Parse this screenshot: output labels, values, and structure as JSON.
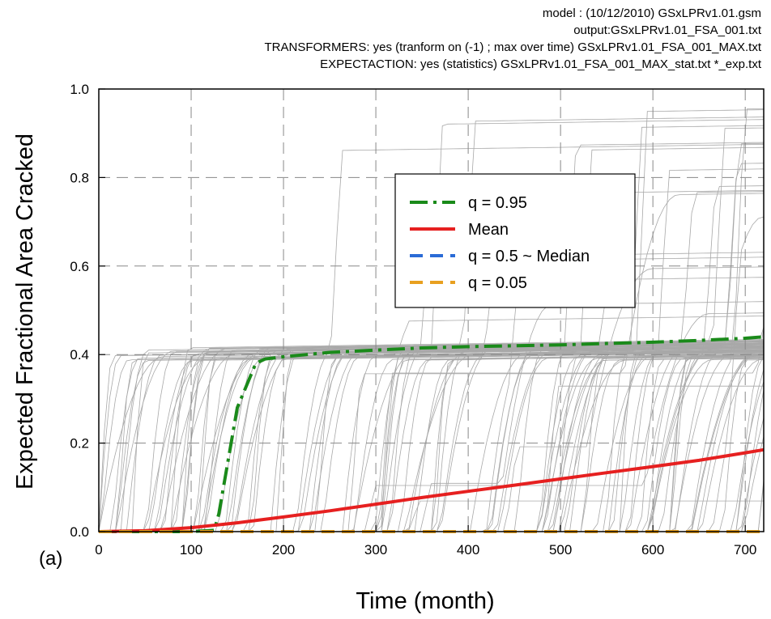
{
  "header": {
    "line1": "model : (10/12/2010) GSxLPRv1.01.gsm",
    "line2": "output:GSxLPRv1.01_FSA_001.txt",
    "line3": "TRANSFORMERS: yes (tranform on (-1) ; max over time) GSxLPRv1.01_FSA_001_MAX.txt",
    "line4": "EXPECTACTION: yes (statistics) GSxLPRv1.01_FSA_001_MAX_stat.txt *_exp.txt"
  },
  "panel_label": "(a)",
  "chart_data": {
    "type": "line",
    "xlabel": "Time (month)",
    "ylabel": "Expected Fractional Area Cracked",
    "xlim": [
      0,
      720
    ],
    "ylim": [
      0,
      1.0
    ],
    "x_ticks": [
      "0",
      "100",
      "200",
      "300",
      "400",
      "500",
      "600",
      "700"
    ],
    "y_ticks": [
      "0.0",
      "0.2",
      "0.4",
      "0.6",
      "0.8",
      "1.0"
    ],
    "grid": true,
    "legend_position": "upper-center-right",
    "series": [
      {
        "name": "q = 0.95",
        "color": "#1a8a1a",
        "style": "dash-dot",
        "x": [
          0,
          100,
          125,
          130,
          140,
          150,
          160,
          170,
          180,
          200,
          250,
          300,
          350,
          400,
          450,
          500,
          550,
          600,
          650,
          700,
          720
        ],
        "y": [
          0,
          0,
          0.003,
          0.04,
          0.16,
          0.28,
          0.33,
          0.38,
          0.39,
          0.395,
          0.405,
          0.41,
          0.415,
          0.418,
          0.42,
          0.422,
          0.425,
          0.428,
          0.432,
          0.437,
          0.44
        ]
      },
      {
        "name": "Mean",
        "color": "#e62020",
        "style": "solid",
        "x": [
          0,
          50,
          100,
          150,
          200,
          250,
          300,
          350,
          400,
          450,
          500,
          550,
          600,
          650,
          700,
          720
        ],
        "y": [
          0,
          0.002,
          0.009,
          0.02,
          0.033,
          0.047,
          0.062,
          0.077,
          0.091,
          0.105,
          0.119,
          0.133,
          0.147,
          0.161,
          0.178,
          0.185
        ]
      },
      {
        "name": "q = 0.5 ~ Median",
        "color": "#2a6bd6",
        "style": "dash",
        "x": [
          0,
          720
        ],
        "y": [
          0,
          0
        ]
      },
      {
        "name": "q = 0.05",
        "color": "#e8a020",
        "style": "dash",
        "x": [
          0,
          720
        ],
        "y": [
          0,
          0
        ]
      }
    ],
    "background_realizations": {
      "color": "#a8a8a8",
      "description_count": 160
    }
  }
}
